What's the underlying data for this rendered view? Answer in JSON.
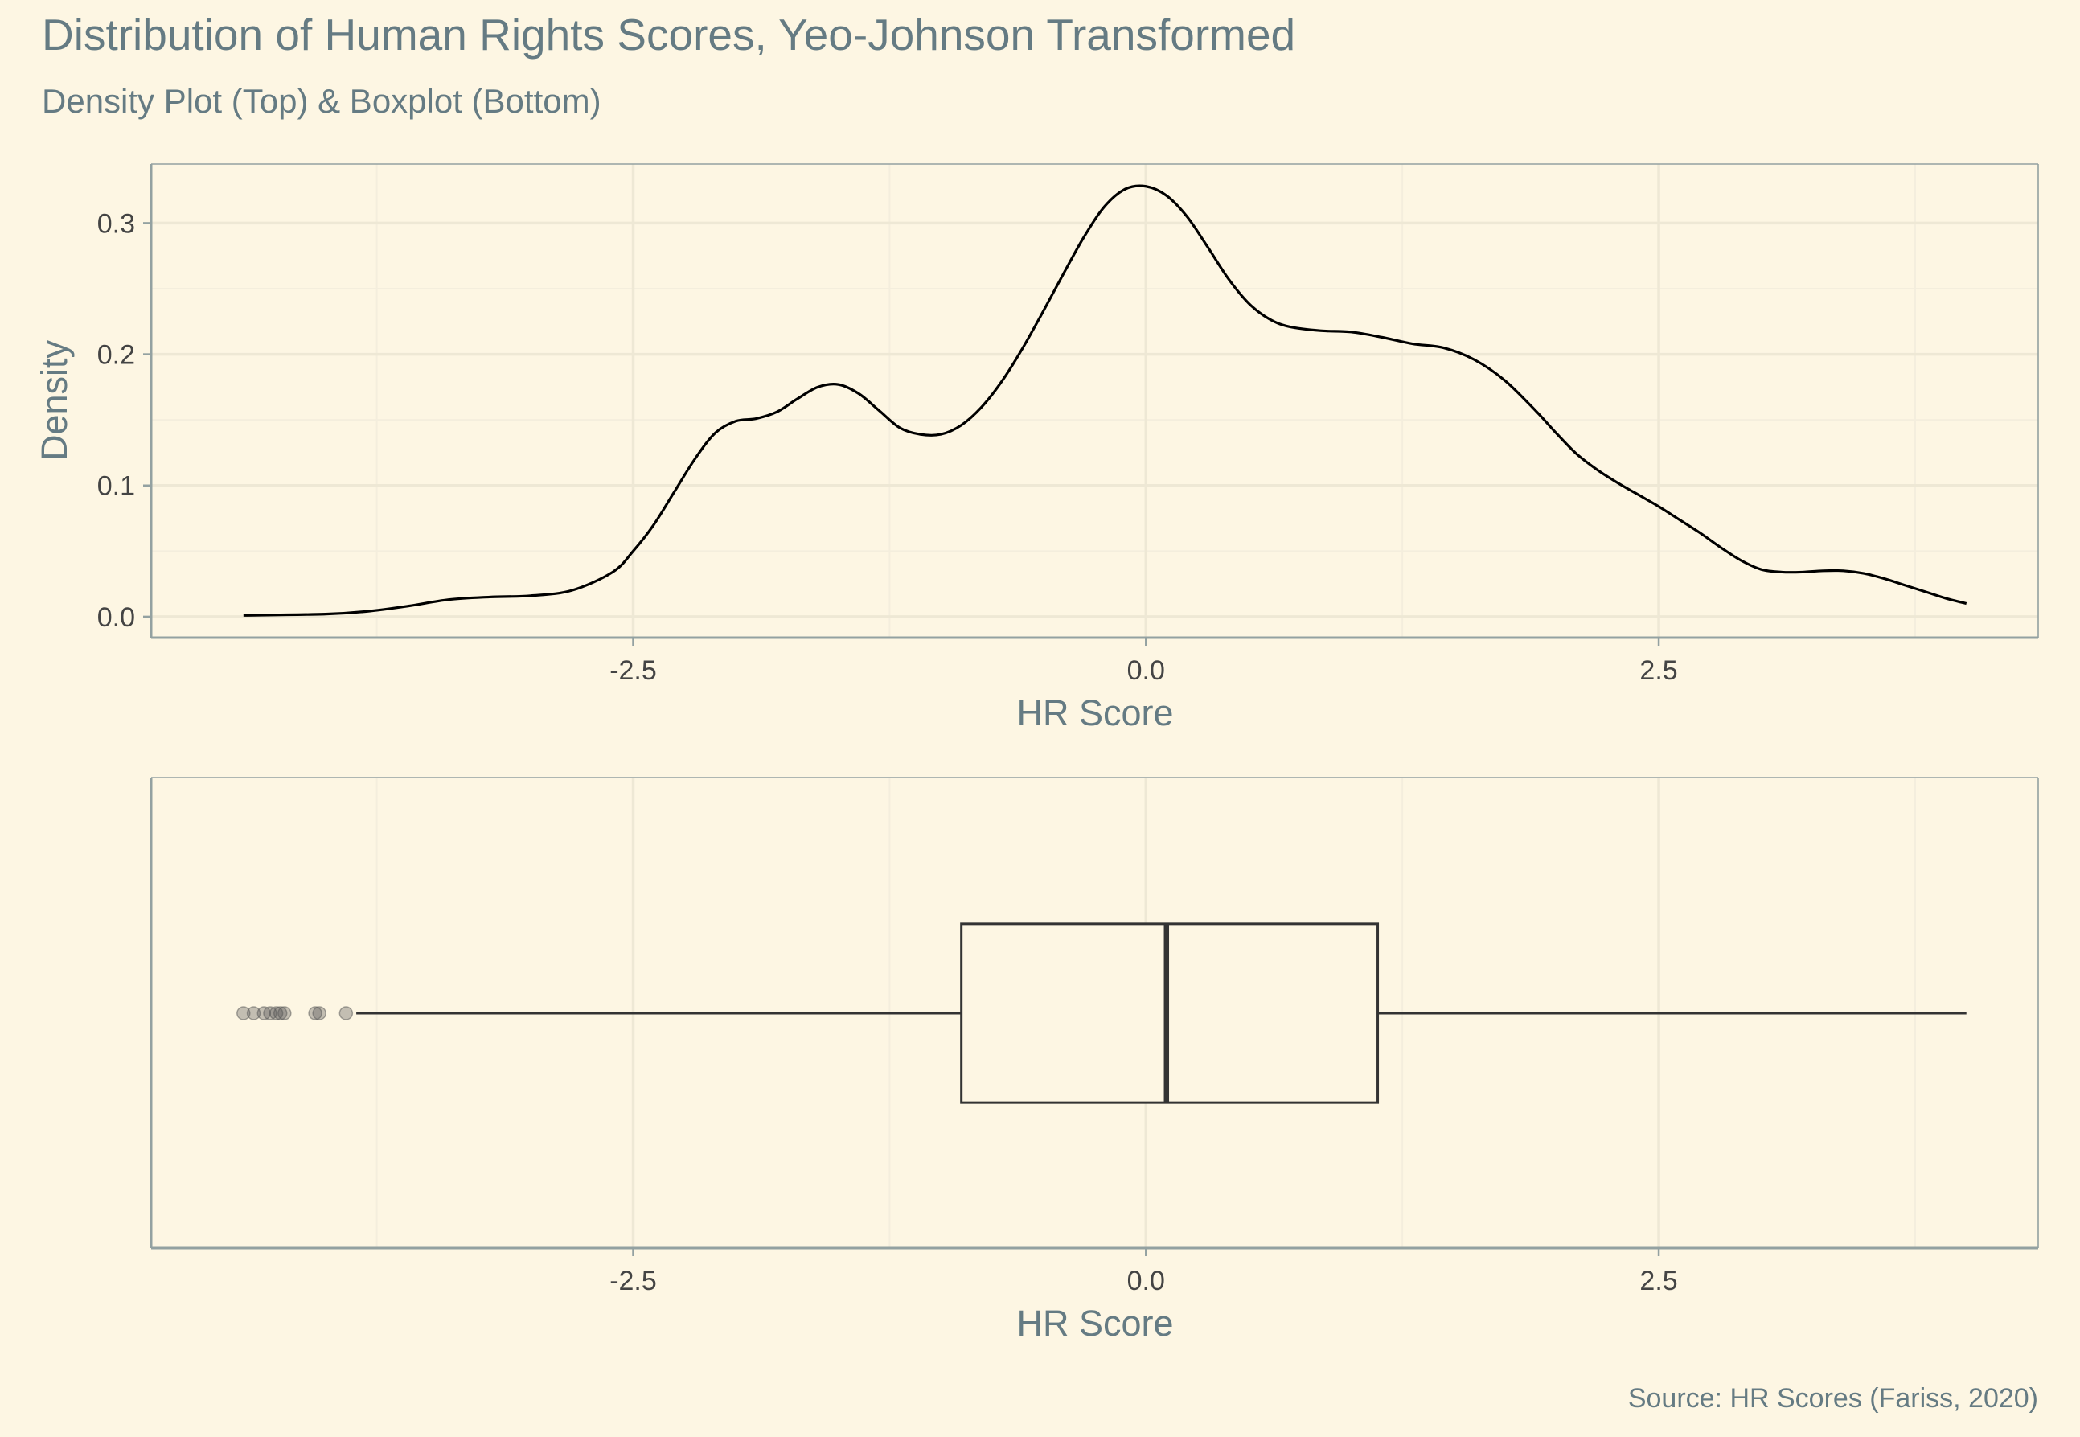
{
  "title": "Distribution of Human Rights Scores, Yeo-Johnson Transformed",
  "subtitle": "Density Plot (Top) & Boxplot (Bottom)",
  "caption": "Source: HR Scores (Fariss, 2020)",
  "colors": {
    "background": "#FDF6E3",
    "panel_border": "#93A1A1",
    "grid_major": "#EEE8D5",
    "grid_minor": "#F4EEDD",
    "text_title": "#657B83",
    "text_tick": "#444444",
    "line": "#000000",
    "box": "#333333",
    "outlier": "#555555"
  },
  "chart_data": [
    {
      "type": "line",
      "name": "density",
      "xlabel": "HR Score",
      "ylabel": "Density",
      "xlim": [
        -4.85,
        4.35
      ],
      "ylim": [
        -0.016,
        0.345
      ],
      "x_ticks": [
        -2.5,
        0.0,
        2.5
      ],
      "x_tick_labels": [
        "-2.5",
        "0.0",
        "2.5"
      ],
      "x_minor_ticks": [
        -3.75,
        -1.25,
        1.25,
        3.75
      ],
      "y_ticks": [
        0.0,
        0.1,
        0.2,
        0.3
      ],
      "y_tick_labels": [
        "0.0",
        "0.1",
        "0.2",
        "0.3"
      ],
      "y_minor_ticks": [
        0.05,
        0.15,
        0.25
      ],
      "grid": true,
      "legend": "none",
      "points": [
        [
          -4.4,
          0.001
        ],
        [
          -4.0,
          0.002
        ],
        [
          -3.8,
          0.004
        ],
        [
          -3.6,
          0.008
        ],
        [
          -3.4,
          0.013
        ],
        [
          -3.2,
          0.015
        ],
        [
          -3.0,
          0.016
        ],
        [
          -2.8,
          0.02
        ],
        [
          -2.6,
          0.034
        ],
        [
          -2.5,
          0.05
        ],
        [
          -2.4,
          0.07
        ],
        [
          -2.3,
          0.095
        ],
        [
          -2.2,
          0.12
        ],
        [
          -2.1,
          0.14
        ],
        [
          -2.0,
          0.149
        ],
        [
          -1.9,
          0.151
        ],
        [
          -1.8,
          0.156
        ],
        [
          -1.7,
          0.166
        ],
        [
          -1.6,
          0.175
        ],
        [
          -1.5,
          0.177
        ],
        [
          -1.4,
          0.17
        ],
        [
          -1.3,
          0.157
        ],
        [
          -1.2,
          0.144
        ],
        [
          -1.1,
          0.139
        ],
        [
          -1.0,
          0.139
        ],
        [
          -0.9,
          0.146
        ],
        [
          -0.8,
          0.16
        ],
        [
          -0.7,
          0.18
        ],
        [
          -0.6,
          0.205
        ],
        [
          -0.5,
          0.233
        ],
        [
          -0.4,
          0.262
        ],
        [
          -0.3,
          0.29
        ],
        [
          -0.2,
          0.313
        ],
        [
          -0.1,
          0.326
        ],
        [
          0.0,
          0.328
        ],
        [
          0.1,
          0.321
        ],
        [
          0.2,
          0.305
        ],
        [
          0.3,
          0.282
        ],
        [
          0.4,
          0.258
        ],
        [
          0.5,
          0.239
        ],
        [
          0.6,
          0.227
        ],
        [
          0.7,
          0.221
        ],
        [
          0.85,
          0.218
        ],
        [
          1.0,
          0.217
        ],
        [
          1.15,
          0.213
        ],
        [
          1.3,
          0.208
        ],
        [
          1.45,
          0.205
        ],
        [
          1.6,
          0.196
        ],
        [
          1.75,
          0.18
        ],
        [
          1.9,
          0.157
        ],
        [
          2.0,
          0.14
        ],
        [
          2.1,
          0.124
        ],
        [
          2.2,
          0.112
        ],
        [
          2.3,
          0.102
        ],
        [
          2.4,
          0.093
        ],
        [
          2.5,
          0.084
        ],
        [
          2.6,
          0.074
        ],
        [
          2.7,
          0.064
        ],
        [
          2.8,
          0.053
        ],
        [
          2.9,
          0.043
        ],
        [
          3.0,
          0.036
        ],
        [
          3.1,
          0.034
        ],
        [
          3.2,
          0.034
        ],
        [
          3.3,
          0.035
        ],
        [
          3.4,
          0.035
        ],
        [
          3.5,
          0.033
        ],
        [
          3.6,
          0.029
        ],
        [
          3.7,
          0.024
        ],
        [
          3.8,
          0.019
        ],
        [
          3.9,
          0.014
        ],
        [
          4.0,
          0.01
        ]
      ]
    },
    {
      "type": "boxplot",
      "xlabel": "HR Score",
      "xlim": [
        -4.85,
        4.35
      ],
      "x_ticks": [
        -2.5,
        0.0,
        2.5
      ],
      "x_tick_labels": [
        "-2.5",
        "0.0",
        "2.5"
      ],
      "x_minor_ticks": [
        -3.75,
        -1.25,
        1.25,
        3.75
      ],
      "grid": true,
      "whisker_low": -3.85,
      "q1": -0.9,
      "median": 0.1,
      "q3": 1.13,
      "whisker_high": 4.0,
      "outliers": [
        -4.4,
        -4.35,
        -4.3,
        -4.27,
        -4.24,
        -4.22,
        -4.2,
        -4.05,
        -4.03,
        -3.9
      ]
    }
  ]
}
